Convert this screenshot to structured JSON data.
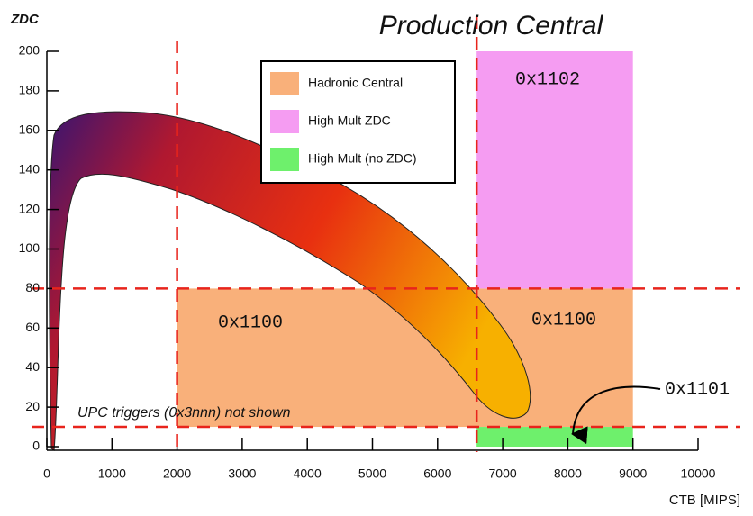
{
  "chart_data": {
    "type": "region",
    "title": "Production Central",
    "x_label": "CTB [MIPS]",
    "y_label": "ZDC",
    "xlim": [
      0,
      10000
    ],
    "ylim": [
      0,
      200
    ],
    "xticks": [
      0,
      1000,
      2000,
      3000,
      4000,
      5000,
      6000,
      7000,
      8000,
      9000,
      10000
    ],
    "yticks": [
      0,
      20,
      40,
      60,
      80,
      100,
      120,
      140,
      160,
      180,
      200
    ],
    "thresholds": {
      "x": [
        2000,
        6600
      ],
      "y": [
        10,
        80
      ]
    },
    "threshold_color": "#e8241c",
    "regions": [
      {
        "name": "Hadronic Central",
        "color": "#f9b07a",
        "x": [
          2000,
          9000
        ],
        "y": [
          10,
          80
        ],
        "labels": [
          "0x1100",
          "0x1100"
        ]
      },
      {
        "name": "High Mult ZDC",
        "color": "#f59cf2",
        "x": [
          6600,
          9000
        ],
        "y": [
          80,
          200
        ],
        "labels": [
          "0x1102"
        ]
      },
      {
        "name": "High Mult (no ZDC)",
        "color": "#6ef06c",
        "x": [
          6600,
          9000
        ],
        "y": [
          0,
          10
        ],
        "labels": [
          "0x1101"
        ]
      }
    ],
    "annotation": "UPC triggers (0x3nnn) not shown"
  }
}
